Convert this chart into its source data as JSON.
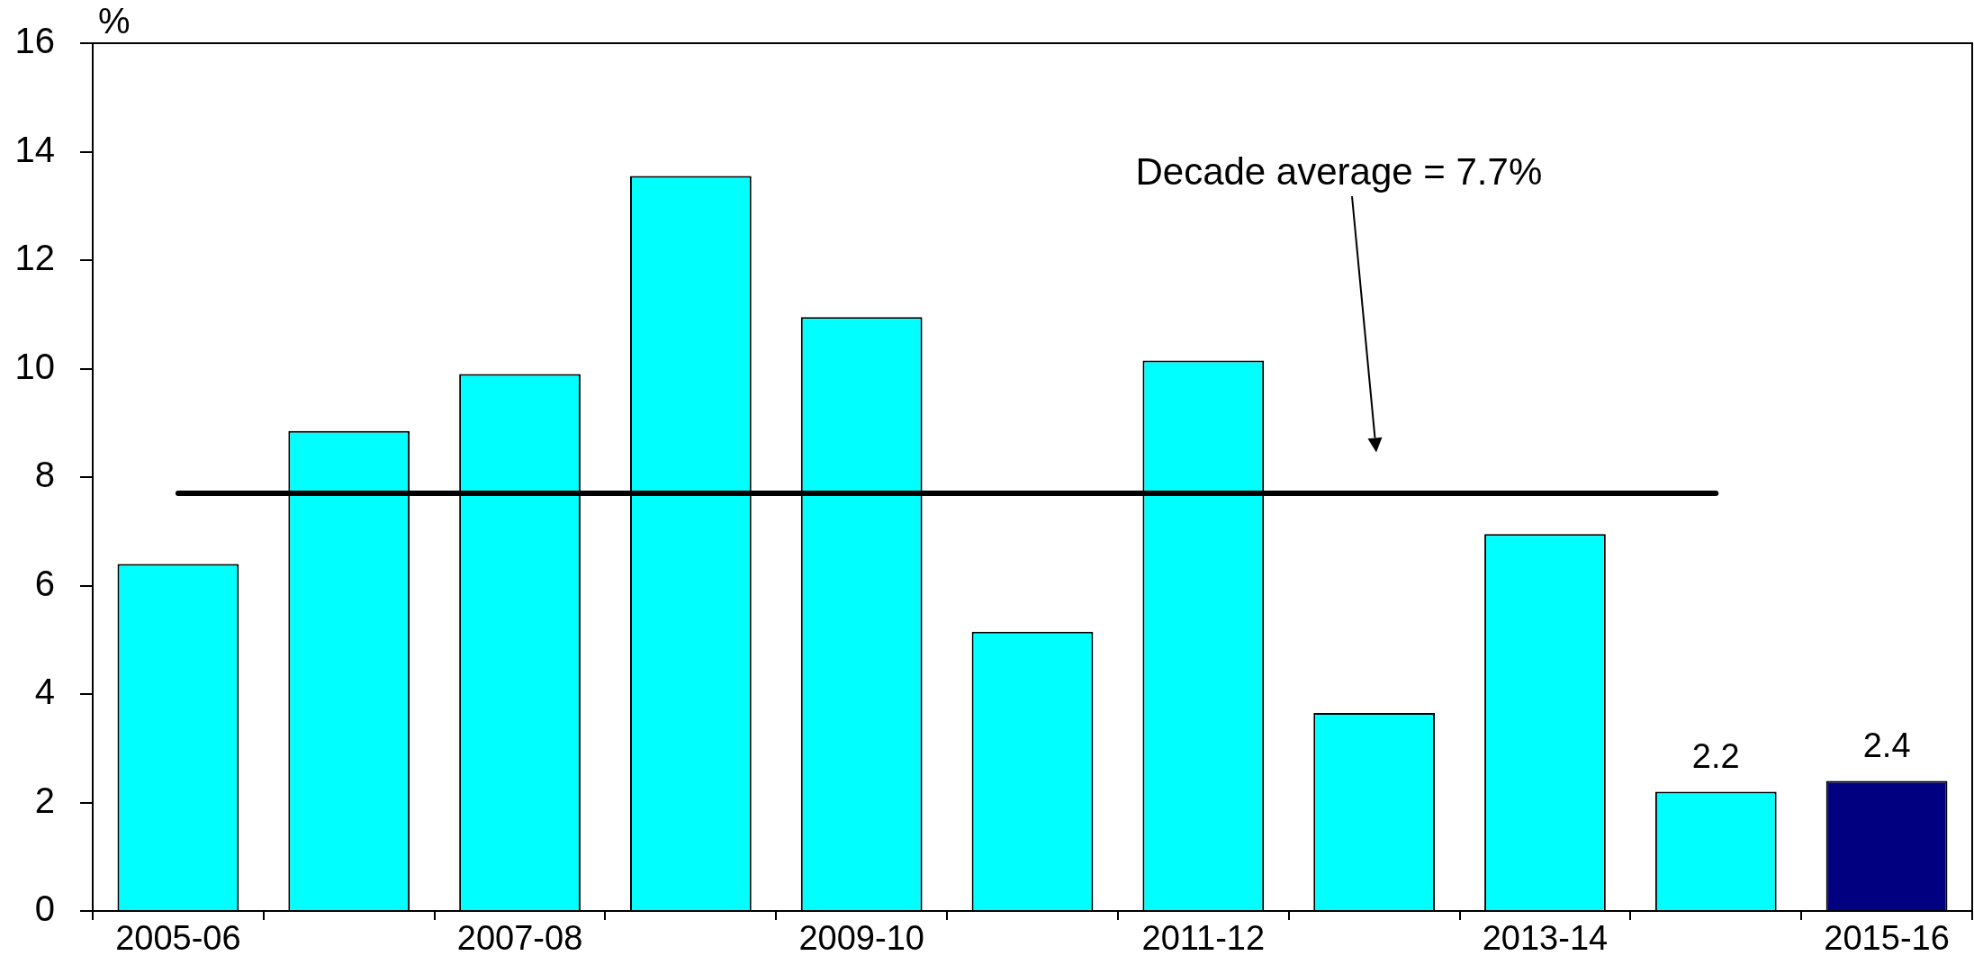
{
  "chart_data": {
    "type": "bar",
    "ylabel": "%",
    "categories": [
      "2005-06",
      null,
      "2007-08",
      null,
      "2009-10",
      null,
      "2011-12",
      null,
      "2013-14",
      null,
      "2015-16"
    ],
    "values": [
      6.4,
      8.85,
      9.9,
      13.55,
      10.95,
      5.15,
      10.15,
      3.65,
      6.95,
      2.2,
      2.4
    ],
    "colors": [
      "#00ffff",
      "#00ffff",
      "#00ffff",
      "#00ffff",
      "#00ffff",
      "#00ffff",
      "#00ffff",
      "#00ffff",
      "#00ffff",
      "#00ffff",
      "#000080"
    ],
    "value_labels": [
      null,
      null,
      null,
      null,
      null,
      null,
      null,
      null,
      null,
      "2.2",
      "2.4"
    ],
    "ylim": [
      0,
      16
    ],
    "yticks": [
      0,
      2,
      4,
      6,
      8,
      10,
      12,
      14,
      16
    ],
    "ref_lines": [
      {
        "axis": "y",
        "value": 7.7,
        "label": "Decade average = 7.7%",
        "color": "#000000",
        "line_style": "solid"
      }
    ]
  }
}
